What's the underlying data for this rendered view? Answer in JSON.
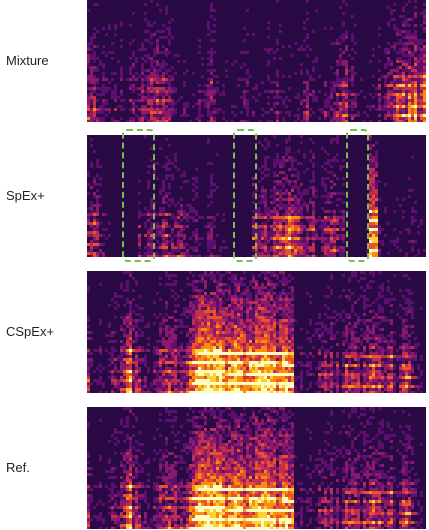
{
  "figure": {
    "rows": [
      {
        "id": "mixture",
        "label": "Mixture",
        "seed": 11,
        "density": 0.95,
        "silence_bands": []
      },
      {
        "id": "spexplus",
        "label": "SpEx+",
        "seed": 23,
        "density": 0.78,
        "silence_bands": [
          0.11,
          0.45,
          0.79
        ]
      },
      {
        "id": "cspexplus",
        "label": "CSpEx+",
        "seed": 37,
        "density": 0.9,
        "silence_bands": []
      },
      {
        "id": "ref",
        "label": "Ref.",
        "seed": 37,
        "density": 0.88,
        "silence_bands": []
      }
    ],
    "highlight_color": "#7dbb4e",
    "colormap": [
      "#08030f",
      "#2a0a45",
      "#5c0f6e",
      "#8c1a6b",
      "#c32e4f",
      "#e9522c",
      "#f98e0b",
      "#fbcf37",
      "#fcfdbf"
    ]
  }
}
